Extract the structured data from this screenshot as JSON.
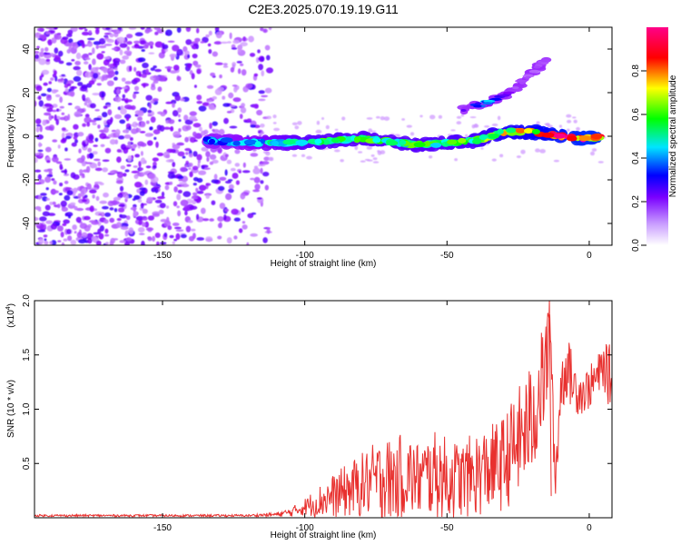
{
  "title": "C2E3.2025.070.19.19.G11",
  "chart_data": [
    {
      "type": "heatmap",
      "xlabel": "Height of straight line (km)",
      "ylabel": "Frequency (Hz)",
      "xlim": [
        -195,
        8
      ],
      "ylim": [
        -50,
        50
      ],
      "xticks": [
        -150,
        -100,
        -50,
        0
      ],
      "yticks": [
        -40,
        -20,
        0,
        20,
        40
      ],
      "colorbar": {
        "label": "Normalized spectral amplitude",
        "range": [
          0,
          1
        ],
        "ticks": [
          0.0,
          0.2,
          0.4,
          0.6,
          0.8
        ],
        "tick_labels": [
          "0.0",
          "0.2",
          "0.4",
          "0.6",
          "0.8"
        ],
        "colormap": [
          "#ffffff",
          "#8800ff",
          "#0000ff",
          "#00ffff",
          "#00ff00",
          "#ffff00",
          "#ff0000",
          "#ff00aa"
        ]
      },
      "noise_region": {
        "x_range": [
          -195,
          -112
        ],
        "freq_range": [
          -50,
          50
        ],
        "amplitude": 0.15
      },
      "main_track": [
        {
          "x": -135,
          "f": -2,
          "a": 0.35
        },
        {
          "x": -120,
          "f": -3,
          "a": 0.4
        },
        {
          "x": -100,
          "f": -3,
          "a": 0.55
        },
        {
          "x": -80,
          "f": -1,
          "a": 0.55
        },
        {
          "x": -60,
          "f": -4,
          "a": 0.55
        },
        {
          "x": -40,
          "f": -2,
          "a": 0.6
        },
        {
          "x": -30,
          "f": 2,
          "a": 0.7
        },
        {
          "x": -20,
          "f": 2,
          "a": 0.8
        },
        {
          "x": -10,
          "f": 0,
          "a": 0.85
        },
        {
          "x": 0,
          "f": -1,
          "a": 0.9
        },
        {
          "x": 5,
          "f": 0,
          "a": 0.85
        }
      ],
      "secondary_track": [
        {
          "x": -45,
          "f": 12,
          "a": 0.15
        },
        {
          "x": -40,
          "f": 14,
          "a": 0.3
        },
        {
          "x": -35,
          "f": 16,
          "a": 0.4
        },
        {
          "x": -28,
          "f": 20,
          "a": 0.12
        },
        {
          "x": -15,
          "f": 35,
          "a": 0.1
        }
      ]
    },
    {
      "type": "line",
      "xlabel": "Height of straight line (km)",
      "ylabel": "SNR (10 * v/v)",
      "scale_label": "(x10",
      "scale_exponent": "4",
      "scale_suffix": ")",
      "xlim": [
        -195,
        8
      ],
      "ylim": [
        0,
        2.0
      ],
      "xticks": [
        -150,
        -100,
        -50,
        0
      ],
      "yticks": [
        0.5,
        1.0,
        1.5,
        2.0
      ],
      "ytick_labels": [
        "0.5",
        "1.0",
        "1.5",
        "2.0"
      ],
      "series": [
        {
          "color": "#e8302e",
          "x": [
            -195,
            -180,
            -160,
            -140,
            -120,
            -110,
            -105,
            -100,
            -95,
            -90,
            -85,
            -80,
            -75,
            -70,
            -65,
            -60,
            -55,
            -50,
            -45,
            -40,
            -35,
            -30,
            -25,
            -20,
            -18,
            -15,
            -14,
            -12,
            -10,
            -8,
            -5,
            -2,
            0,
            3,
            5,
            7
          ],
          "y": [
            0.02,
            0.02,
            0.02,
            0.02,
            0.02,
            0.03,
            0.05,
            0.1,
            0.15,
            0.2,
            0.25,
            0.3,
            0.35,
            0.35,
            0.4,
            0.35,
            0.4,
            0.35,
            0.35,
            0.4,
            0.45,
            0.5,
            0.7,
            0.9,
            1.1,
            1.4,
            2.0,
            0.3,
            1.2,
            1.4,
            1.2,
            1.15,
            1.2,
            1.3,
            1.4,
            1.3
          ],
          "spread": [
            0.01,
            0.01,
            0.01,
            0.01,
            0.01,
            0.02,
            0.04,
            0.08,
            0.15,
            0.2,
            0.25,
            0.3,
            0.35,
            0.4,
            0.4,
            0.35,
            0.4,
            0.4,
            0.35,
            0.4,
            0.4,
            0.45,
            0.5,
            0.55,
            0.5,
            0.5,
            0.1,
            0.3,
            0.3,
            0.3,
            0.25,
            0.2,
            0.2,
            0.2,
            0.2,
            0.3
          ]
        }
      ]
    }
  ]
}
